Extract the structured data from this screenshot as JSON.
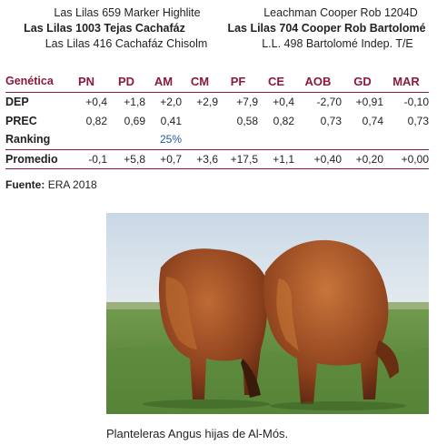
{
  "pedigree": {
    "left": {
      "line1": "Las Lilas 659 Marker Highlite",
      "line2": "Las Lilas 1003 Tejas Cachafáz",
      "line3": "Las Lilas 416 Cachafáz Chisolm"
    },
    "right": {
      "line1": "Leachman Cooper Rob 1204D",
      "line2": "Las Lilas 704 Cooper Rob Bartolomé",
      "line3": "L.L. 498 Bartolomé Indep. T/E"
    }
  },
  "table": {
    "header_label": "Genética",
    "columns": [
      "PN",
      "PD",
      "AM",
      "CM",
      "PF",
      "CE",
      "AOB",
      "GD",
      "MAR"
    ],
    "rows": {
      "dep": {
        "label": "DEP",
        "values": [
          "+0,4",
          "+1,8",
          "+2,0",
          "+2,9",
          "+7,9",
          "+0,4",
          "-2,70",
          "+0,91",
          "-0,10"
        ]
      },
      "prec": {
        "label": "PREC",
        "values": [
          "0,82",
          "0,69",
          "0,41",
          "",
          "0,58",
          "0,82",
          "0,73",
          "0,74",
          "0,73"
        ]
      },
      "ranking": {
        "label": "Ranking",
        "values": [
          "",
          "",
          "25%",
          "",
          "",
          "",
          "",
          "",
          ""
        ]
      },
      "promedio": {
        "label": "Promedio",
        "values": [
          "-0,1",
          "+5,8",
          "+0,7",
          "+3,6",
          "+17,5",
          "+1,1",
          "+0,40",
          "+0,20",
          "+0,00"
        ]
      }
    }
  },
  "source": {
    "label": "Fuente:",
    "text": "ERA 2018"
  },
  "photo": {
    "icon": "cattle-photo"
  },
  "caption": "Planteleras Angus hijas de Al-Mós.",
  "colors": {
    "accent": "#8b1a3a",
    "ranking": "#1f5b9a"
  }
}
